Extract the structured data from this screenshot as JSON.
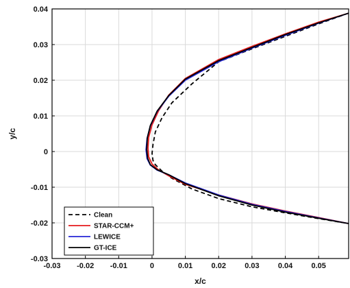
{
  "chart_data": {
    "type": "line",
    "title": "",
    "xlabel": "x/c",
    "ylabel": "y/c",
    "xlim": [
      -0.03,
      0.059
    ],
    "ylim": [
      -0.03,
      0.04
    ],
    "xticks": [
      -0.03,
      -0.02,
      -0.01,
      0,
      0.01,
      0.02,
      0.03,
      0.04,
      0.05
    ],
    "xtick_labels": [
      "-0.03",
      "-0.02",
      "-0.01",
      "0",
      "0.01",
      "0.02",
      "0.03",
      "0.04",
      "0.05"
    ],
    "yticks": [
      -0.03,
      -0.02,
      -0.01,
      0,
      0.01,
      0.02,
      0.03,
      0.04
    ],
    "ytick_labels": [
      "-0.03",
      "-0.02",
      "-0.01",
      "0",
      "0.01",
      "0.02",
      "0.03",
      "0.04"
    ],
    "grid": true,
    "legend_position": "bottom-left",
    "series": [
      {
        "name": "Clean",
        "color": "#000000",
        "style": "dashed",
        "x": [
          0.059,
          0.05,
          0.04,
          0.03,
          0.02,
          0.012,
          0.006,
          0.003,
          0.001,
          0.0003,
          0.0,
          0.0003,
          0.001,
          0.003,
          0.006,
          0.012,
          0.02,
          0.03,
          0.04,
          0.05,
          0.059
        ],
        "y": [
          0.0388,
          0.0358,
          0.0323,
          0.0288,
          0.0252,
          0.019,
          0.0137,
          0.0095,
          0.0055,
          0.002,
          -0.0005,
          -0.0025,
          -0.0037,
          -0.0055,
          -0.0075,
          -0.0105,
          -0.0132,
          -0.0155,
          -0.0172,
          -0.0188,
          -0.0202
        ]
      },
      {
        "name": "STAR-CCM+",
        "color": "#e41a1c",
        "style": "solid",
        "x": [
          0.059,
          0.05,
          0.04,
          0.03,
          0.02,
          0.01,
          0.005,
          0.002,
          0.0,
          -0.001,
          -0.0012,
          -0.001,
          0.0,
          0.002,
          0.005,
          0.01,
          0.02,
          0.03,
          0.04,
          0.05,
          0.059
        ],
        "y": [
          0.0388,
          0.0363,
          0.033,
          0.0295,
          0.0258,
          0.0205,
          0.0158,
          0.0115,
          0.0075,
          0.004,
          0.001,
          -0.0015,
          -0.0035,
          -0.0052,
          -0.0068,
          -0.0092,
          -0.0122,
          -0.0147,
          -0.0167,
          -0.0185,
          -0.0202
        ]
      },
      {
        "name": "LEWICE",
        "color": "#2424d6",
        "style": "solid",
        "x": [
          0.059,
          0.05,
          0.04,
          0.03,
          0.02,
          0.01,
          0.005,
          0.0015,
          -0.0005,
          -0.0015,
          -0.0018,
          -0.0015,
          -0.0005,
          0.0015,
          0.005,
          0.01,
          0.02,
          0.03,
          0.04,
          0.05,
          0.059
        ],
        "y": [
          0.0388,
          0.036,
          0.0326,
          0.029,
          0.0252,
          0.02,
          0.0155,
          0.0112,
          0.0072,
          0.0037,
          0.0005,
          -0.002,
          -0.0038,
          -0.0052,
          -0.0065,
          -0.0088,
          -0.0122,
          -0.0148,
          -0.0168,
          -0.0186,
          -0.0202
        ]
      },
      {
        "name": "GT-ICE",
        "color": "#000000",
        "style": "solid",
        "x": [
          0.059,
          0.05,
          0.04,
          0.03,
          0.02,
          0.01,
          0.005,
          0.0015,
          -0.0005,
          -0.0014,
          -0.0016,
          -0.0013,
          -0.0005,
          0.0015,
          0.005,
          0.01,
          0.02,
          0.03,
          0.04,
          0.05,
          0.059
        ],
        "y": [
          0.0388,
          0.0361,
          0.0328,
          0.0292,
          0.0255,
          0.0203,
          0.0157,
          0.0113,
          0.0073,
          0.0038,
          0.0006,
          -0.0019,
          -0.0037,
          -0.0051,
          -0.0065,
          -0.009,
          -0.0124,
          -0.015,
          -0.017,
          -0.0187,
          -0.0202
        ]
      }
    ]
  }
}
